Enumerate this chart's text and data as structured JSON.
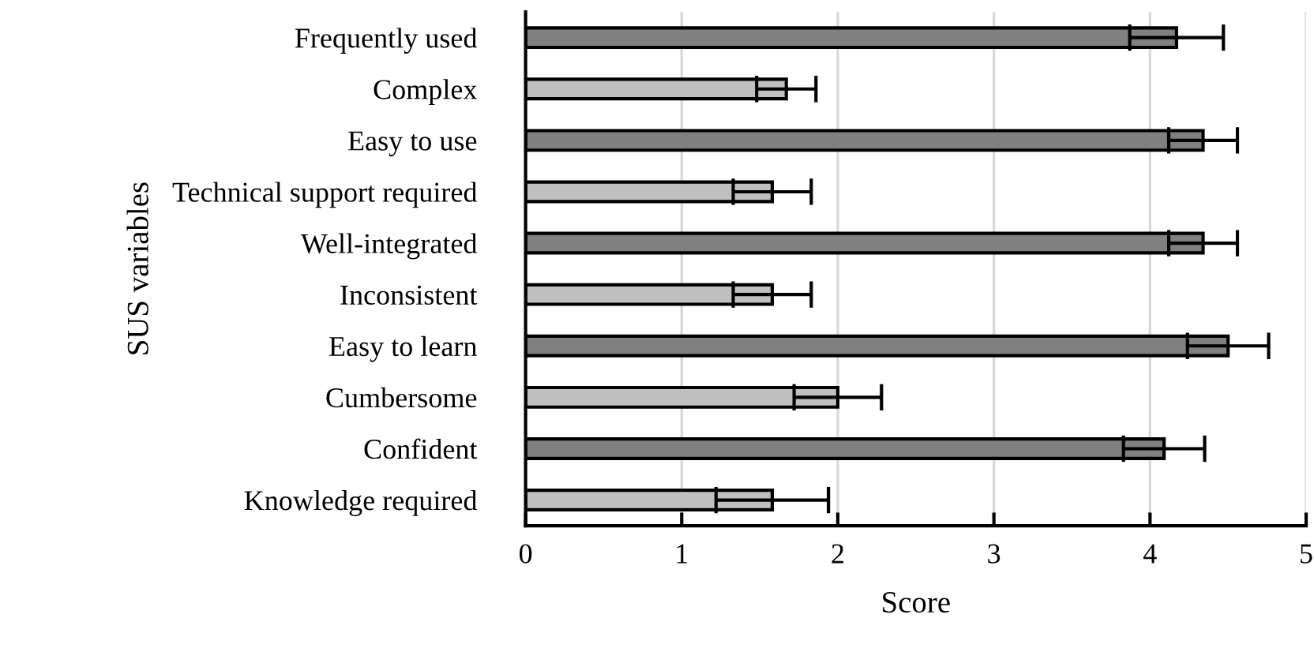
{
  "chart_data": {
    "type": "bar",
    "orientation": "horizontal",
    "xlabel": "Score",
    "ylabel": "SUS variables",
    "categories": [
      "Frequently used",
      "Complex",
      "Easy to use",
      "Technical support required",
      "Well-integrated",
      "Inconsistent",
      "Easy to learn",
      "Cumbersome",
      "Confident",
      "Knowledge required"
    ],
    "values": [
      4.17,
      1.67,
      4.34,
      1.58,
      4.34,
      1.58,
      4.5,
      2.0,
      4.09,
      1.58
    ],
    "errors": [
      0.3,
      0.19,
      0.22,
      0.25,
      0.22,
      0.25,
      0.26,
      0.28,
      0.26,
      0.36
    ],
    "colors": [
      "#808080",
      "#c0c0c0",
      "#808080",
      "#c0c0c0",
      "#808080",
      "#c0c0c0",
      "#808080",
      "#c0c0c0",
      "#808080",
      "#c0c0c0"
    ],
    "xlim": [
      0,
      5
    ],
    "xticks": [
      0,
      1,
      2,
      3,
      4,
      5
    ],
    "grid": "x"
  }
}
